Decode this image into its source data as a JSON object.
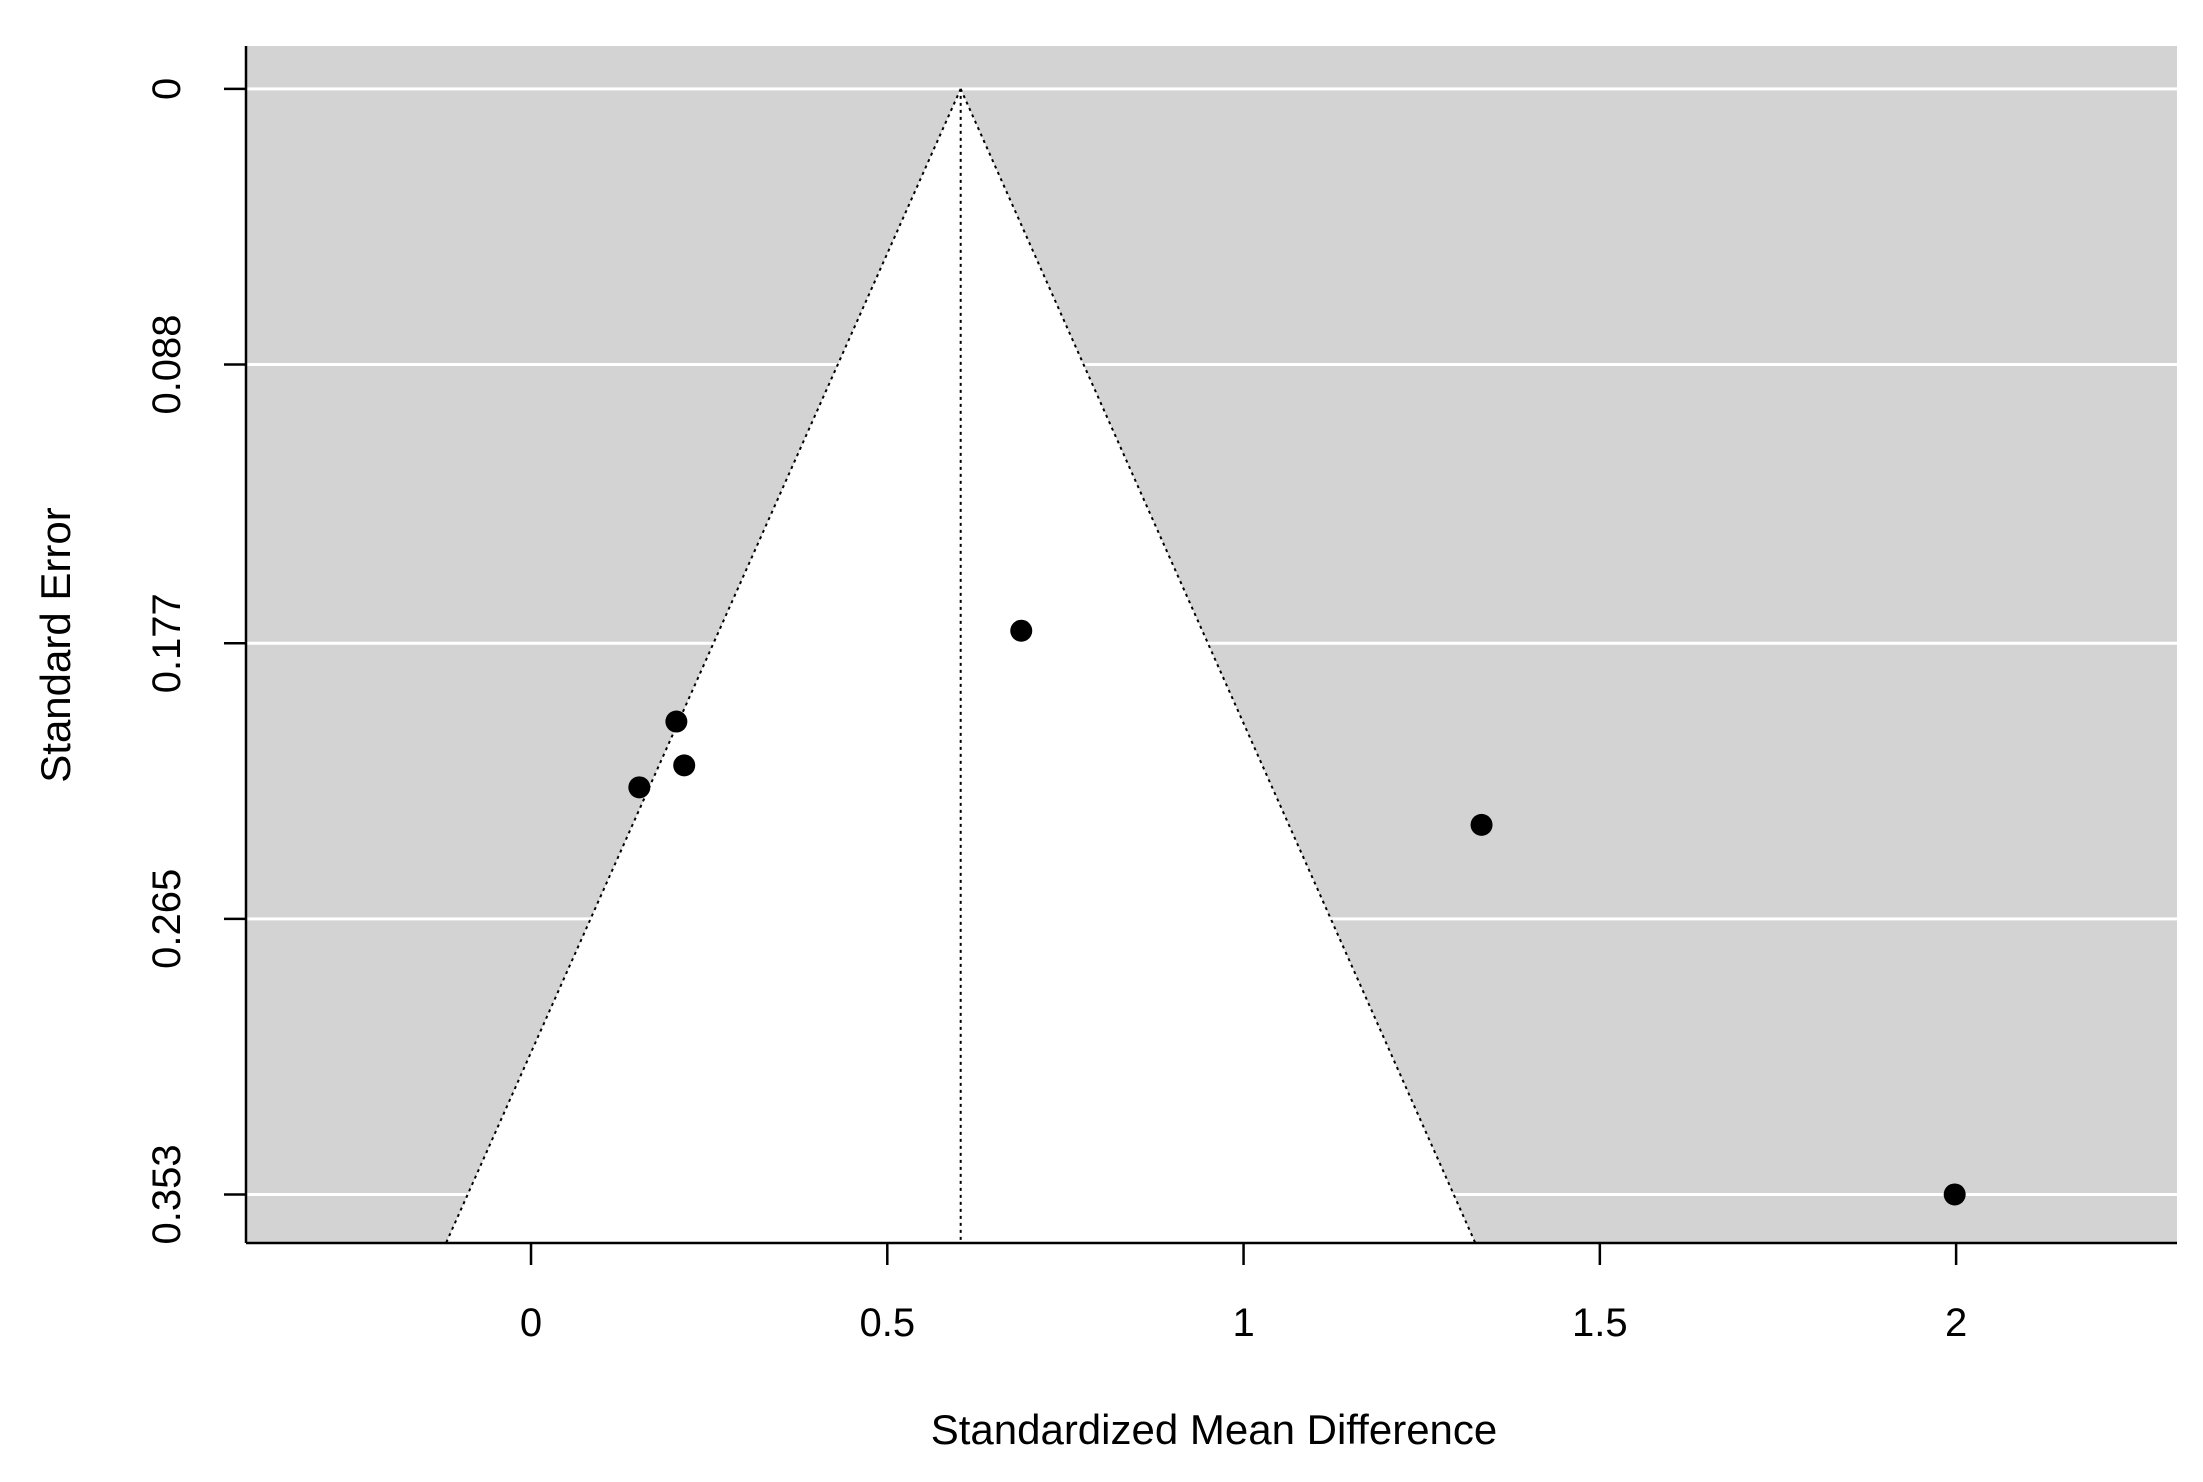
{
  "chart_data": {
    "type": "scatter",
    "subtype": "funnel-plot",
    "title": "",
    "xlabel": "Standardized Mean Difference",
    "ylabel": "Standard Error",
    "xlim": [
      -0.4,
      2.31
    ],
    "ylim": [
      -0.0137,
      0.3685
    ],
    "y_axis_reversed": true,
    "x_ticks": [
      0,
      0.5,
      1,
      1.5,
      2
    ],
    "x_tick_labels": [
      "0",
      "0.5",
      "1",
      "1.5",
      "2"
    ],
    "y_ticks": [
      0,
      0.088,
      0.177,
      0.265,
      0.353
    ],
    "y_tick_labels": [
      "0",
      "0.088",
      "0.177",
      "0.265",
      "0.353"
    ],
    "grid": "horizontal",
    "summary_estimate": 0.603,
    "funnel_z": 1.96,
    "colors": {
      "background": "#d3d3d3",
      "funnel_fill": "#ffffff",
      "grid": "#ffffff",
      "points": "#000000",
      "lines": "#000000"
    },
    "points": [
      {
        "x": 0.688,
        "y": 0.173
      },
      {
        "x": 0.204,
        "y": 0.202
      },
      {
        "x": 0.215,
        "y": 0.216
      },
      {
        "x": 0.152,
        "y": 0.223
      },
      {
        "x": 1.334,
        "y": 0.235
      },
      {
        "x": 1.998,
        "y": 0.353
      }
    ]
  }
}
